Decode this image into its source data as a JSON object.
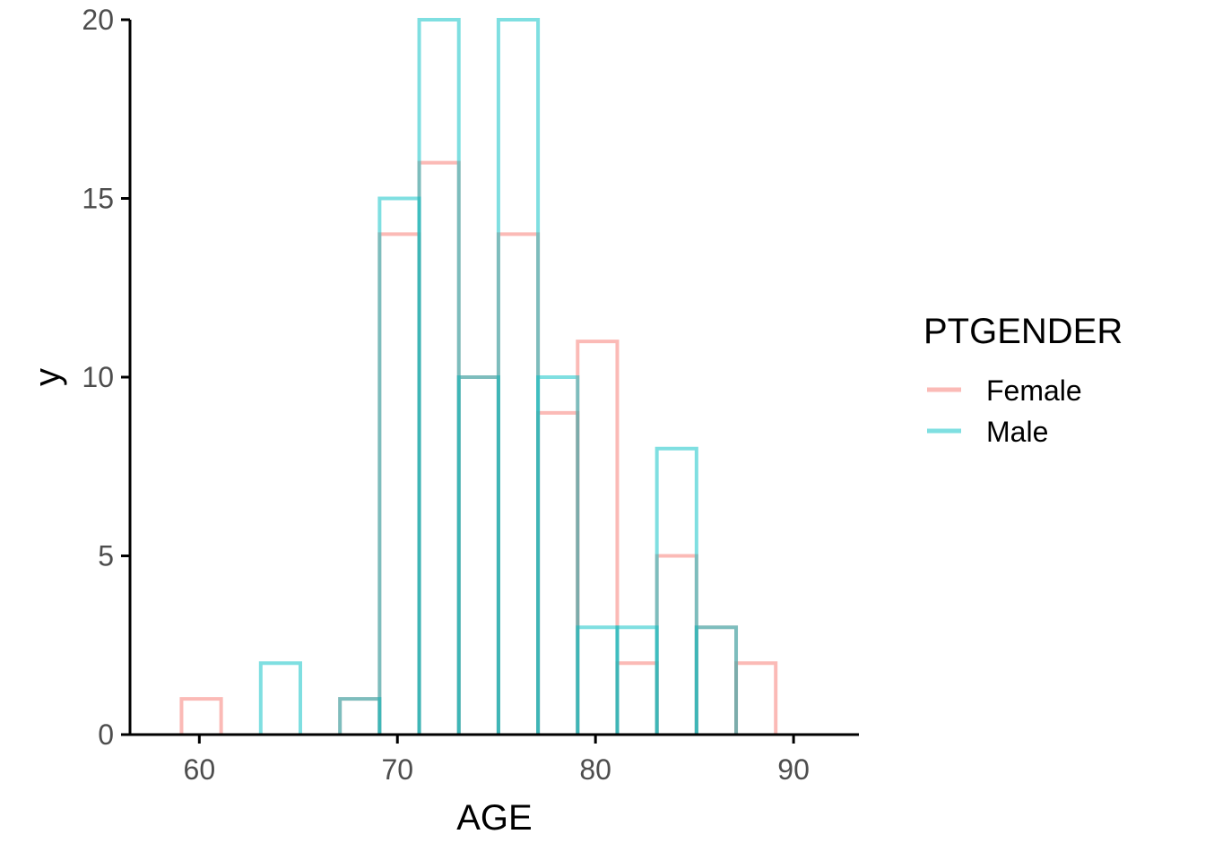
{
  "chart_data": {
    "type": "histogram-step",
    "xlabel": "AGE",
    "ylabel": "y",
    "xlim": [
      56.5,
      93.3
    ],
    "ylim": [
      0,
      20
    ],
    "xticks": [
      60,
      70,
      80,
      90
    ],
    "yticks": [
      0,
      5,
      10,
      15,
      20
    ],
    "grid": false,
    "legend": {
      "title": "PTGENDER",
      "position": "right"
    },
    "bin_edges": [
      59.1,
      61.1,
      63.1,
      65.1,
      67.1,
      69.1,
      71.1,
      73.1,
      75.1,
      77.1,
      79.1,
      81.1,
      83.1,
      85.1,
      87.1,
      89.1
    ],
    "series": [
      {
        "name": "Female",
        "color": "#F8766D",
        "values": [
          1,
          0,
          0,
          0,
          1,
          14,
          16,
          10,
          14,
          9,
          11,
          2,
          5,
          3,
          2
        ]
      },
      {
        "name": "Male",
        "color": "#00BFC4",
        "values": [
          0,
          0,
          2,
          0,
          1,
          15,
          20,
          10,
          20,
          10,
          3,
          3,
          8,
          3,
          0
        ]
      }
    ]
  }
}
